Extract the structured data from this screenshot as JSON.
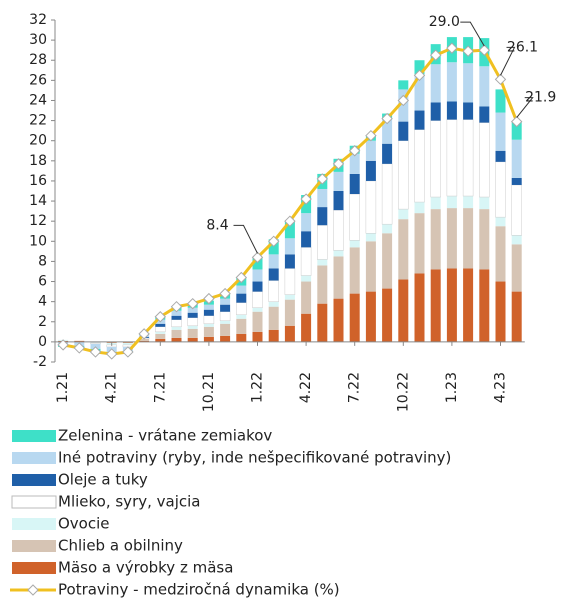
{
  "chart_data": {
    "type": "bar",
    "categories": [
      "1.21",
      null,
      null,
      "4.21",
      null,
      null,
      "7.21",
      null,
      null,
      "10.21",
      null,
      null,
      "1.22",
      null,
      null,
      "4.22",
      null,
      null,
      "7.22",
      null,
      null,
      "10.22",
      null,
      null,
      "1.23",
      null,
      null,
      "4.23",
      null
    ],
    "ylim": [
      -2,
      32
    ],
    "yticks": [
      -2,
      0,
      2,
      4,
      6,
      8,
      10,
      12,
      14,
      16,
      18,
      20,
      22,
      24,
      26,
      28,
      30,
      32
    ],
    "stacked": true,
    "series": [
      {
        "name": "Mäso a výrobky z mäsa",
        "color": "#d0622a",
        "values": [
          0.1,
          0.1,
          0,
          -0.1,
          -0.1,
          0.1,
          0.3,
          0.4,
          0.4,
          0.5,
          0.6,
          0.8,
          1.0,
          1.2,
          1.6,
          2.8,
          3.8,
          4.3,
          4.8,
          5.0,
          5.3,
          6.2,
          6.8,
          7.2,
          7.3,
          7.3,
          7.2,
          6.0,
          5.0
        ]
      },
      {
        "name": "Chlieb a obilniny",
        "color": "#d6c4b4",
        "values": [
          0,
          0,
          0,
          0,
          0,
          0.2,
          0.5,
          0.8,
          0.9,
          1.0,
          1.2,
          1.5,
          2.0,
          2.3,
          2.6,
          3.2,
          3.8,
          4.2,
          4.6,
          5.0,
          5.5,
          6.0,
          6.0,
          6.0,
          6.0,
          6.0,
          6.0,
          5.5,
          4.7
        ]
      },
      {
        "name": "Ovocie",
        "color": "#d8f6f6",
        "values": [
          0.1,
          0,
          -0.1,
          -0.2,
          -0.2,
          0,
          0.2,
          0.3,
          0.3,
          0.3,
          0.3,
          0.4,
          0.4,
          0.5,
          0.5,
          0.6,
          0.6,
          0.6,
          0.7,
          0.8,
          0.9,
          1.0,
          1.1,
          1.2,
          1.2,
          1.2,
          1.2,
          0.9,
          0.9
        ]
      },
      {
        "name": "Mlieko, syry, vajcia",
        "color": "#ffffff",
        "values": [
          0,
          0,
          -0.1,
          -0.2,
          -0.2,
          0.1,
          0.5,
          0.7,
          0.8,
          0.8,
          0.9,
          1.2,
          1.6,
          2.1,
          2.6,
          2.8,
          3.4,
          4.0,
          4.6,
          5.2,
          6.0,
          6.8,
          7.2,
          7.6,
          7.6,
          7.6,
          7.4,
          5.5,
          5.0
        ]
      },
      {
        "name": "Oleje a tuky",
        "color": "#1f5fa8",
        "values": [
          0,
          0,
          0,
          0,
          0,
          0.1,
          0.3,
          0.4,
          0.5,
          0.6,
          0.7,
          0.9,
          1.0,
          1.2,
          1.4,
          1.6,
          1.8,
          1.9,
          2.0,
          2.0,
          2.0,
          1.9,
          1.9,
          1.8,
          1.8,
          1.7,
          1.6,
          1.1,
          0.7
        ]
      },
      {
        "name": "Iné potraviny (ryby, inde nešpecifikované potraviny)",
        "color": "#b8d8f0",
        "values": [
          -0.3,
          -0.4,
          -0.5,
          -0.5,
          -0.4,
          0.2,
          0.4,
          0.5,
          0.5,
          0.5,
          0.6,
          0.8,
          1.2,
          1.4,
          1.6,
          1.8,
          1.8,
          1.9,
          2.0,
          2.0,
          2.4,
          3.2,
          3.6,
          3.8,
          3.9,
          3.9,
          4.0,
          3.8,
          3.8
        ]
      },
      {
        "name": "Zelenina - vrátane zemiakov",
        "color": "#3ee0c8",
        "values": [
          -0.2,
          -0.3,
          -0.3,
          -0.2,
          -0.1,
          0.1,
          0.3,
          0.4,
          0.4,
          0.4,
          0.5,
          0.8,
          1.2,
          1.5,
          1.7,
          1.8,
          1.5,
          1.3,
          0.8,
          0.5,
          0.6,
          0.9,
          1.4,
          2.0,
          2.5,
          2.6,
          2.8,
          2.3,
          1.8
        ]
      },
      {
        "name": "Potraviny - medziročná dynamika (%)",
        "color": "#f0c020",
        "kind": "line",
        "values": [
          -0.3,
          -0.6,
          -1.0,
          -1.2,
          -1.0,
          0.8,
          2.5,
          3.5,
          3.8,
          4.3,
          4.8,
          6.4,
          8.4,
          10.0,
          12.0,
          14.2,
          16.2,
          17.7,
          19.0,
          20.5,
          22.2,
          24.0,
          26.5,
          28.5,
          29.2,
          28.9,
          29.0,
          26.1,
          21.9
        ],
        "value_labels": [
          null,
          null,
          null,
          null,
          null,
          null,
          null,
          null,
          null,
          null,
          null,
          null,
          "8.4",
          null,
          null,
          null,
          null,
          null,
          null,
          null,
          null,
          null,
          null,
          null,
          null,
          null,
          "29.0",
          "26.1",
          "21.9"
        ]
      }
    ]
  }
}
